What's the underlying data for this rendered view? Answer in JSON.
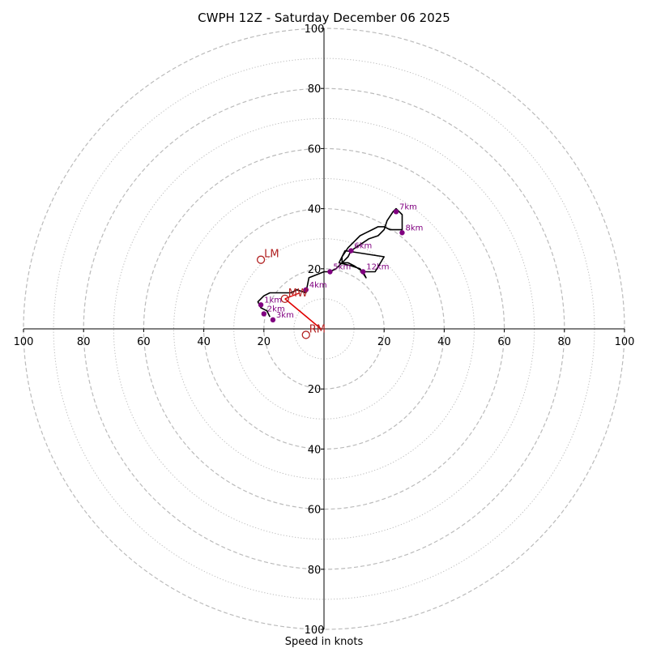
{
  "chart_data": {
    "type": "scatter",
    "subtype": "hodograph",
    "title": "CWPH 12Z - Saturday December 06 2025",
    "xlabel": "Speed in knots",
    "ylabel": "",
    "xlim": [
      -100,
      100
    ],
    "ylim": [
      -100,
      100
    ],
    "rings_major": [
      20,
      40,
      60,
      80,
      100
    ],
    "rings_minor": [
      10,
      30,
      50,
      70,
      90
    ],
    "tick_values": [
      20,
      40,
      60,
      80,
      100
    ],
    "x_tick_labels": [
      "100",
      "80",
      "60",
      "40",
      "20",
      "20",
      "40",
      "60",
      "80",
      "100"
    ],
    "y_tick_labels": [
      "100",
      "80",
      "60",
      "40",
      "20",
      "20",
      "40",
      "60",
      "80",
      "100"
    ],
    "grid": true,
    "colors": {
      "trace": "#000000",
      "height_marker": "#800080",
      "motion": "#b22222",
      "vector": "#e00000",
      "ring": "#bbbbbb",
      "axis": "#000000"
    },
    "trace": [
      [
        -18,
        4
      ],
      [
        -19,
        6
      ],
      [
        -21,
        7
      ],
      [
        -22,
        9
      ],
      [
        -20,
        11
      ],
      [
        -18,
        12
      ],
      [
        -14,
        12
      ],
      [
        -11,
        12
      ],
      [
        -9,
        13
      ],
      [
        -6,
        12
      ],
      [
        -5,
        17
      ],
      [
        0,
        19
      ],
      [
        2,
        19
      ],
      [
        4,
        20
      ],
      [
        6,
        22
      ],
      [
        8,
        24
      ],
      [
        9,
        26
      ],
      [
        12,
        28
      ],
      [
        15,
        30
      ],
      [
        18,
        31
      ],
      [
        20,
        33
      ],
      [
        21,
        36
      ],
      [
        23,
        39
      ],
      [
        24,
        40
      ],
      [
        25,
        39
      ],
      [
        26,
        38
      ],
      [
        26,
        33
      ],
      [
        24,
        33
      ],
      [
        22,
        33
      ],
      [
        20,
        34
      ],
      [
        18,
        34
      ],
      [
        16,
        33
      ],
      [
        14,
        32
      ],
      [
        12,
        31
      ],
      [
        10,
        29
      ],
      [
        8,
        27
      ],
      [
        6,
        24
      ],
      [
        6,
        22
      ],
      [
        8,
        22
      ],
      [
        10,
        21
      ],
      [
        13,
        19
      ],
      [
        14,
        17
      ],
      [
        12,
        20
      ],
      [
        9,
        21
      ],
      [
        5,
        22
      ],
      [
        7,
        26
      ],
      [
        20,
        24
      ],
      [
        17,
        19
      ],
      [
        12,
        19
      ]
    ],
    "height_markers": [
      {
        "label": "1km",
        "u": -21,
        "v": 8
      },
      {
        "label": "2km",
        "u": -20,
        "v": 5
      },
      {
        "label": "3km",
        "u": -17,
        "v": 3
      },
      {
        "label": "4km",
        "u": -6,
        "v": 13
      },
      {
        "label": "5km",
        "u": 2,
        "v": 19
      },
      {
        "label": "6km",
        "u": 9,
        "v": 26
      },
      {
        "label": "7km",
        "u": 24,
        "v": 39
      },
      {
        "label": "8km",
        "u": 26,
        "v": 32
      },
      {
        "label": "12km",
        "u": 13,
        "v": 19
      }
    ],
    "storm_motions": [
      {
        "label": "LM",
        "u": -21,
        "v": 23
      },
      {
        "label": "RM",
        "u": -6,
        "v": -2
      },
      {
        "label": "MW",
        "u": -13,
        "v": 10
      }
    ],
    "mean_wind_vector": {
      "from": [
        -13,
        10
      ],
      "to": [
        -1,
        0
      ]
    },
    "shear_marker": {
      "u": -8,
      "v": 12
    }
  }
}
